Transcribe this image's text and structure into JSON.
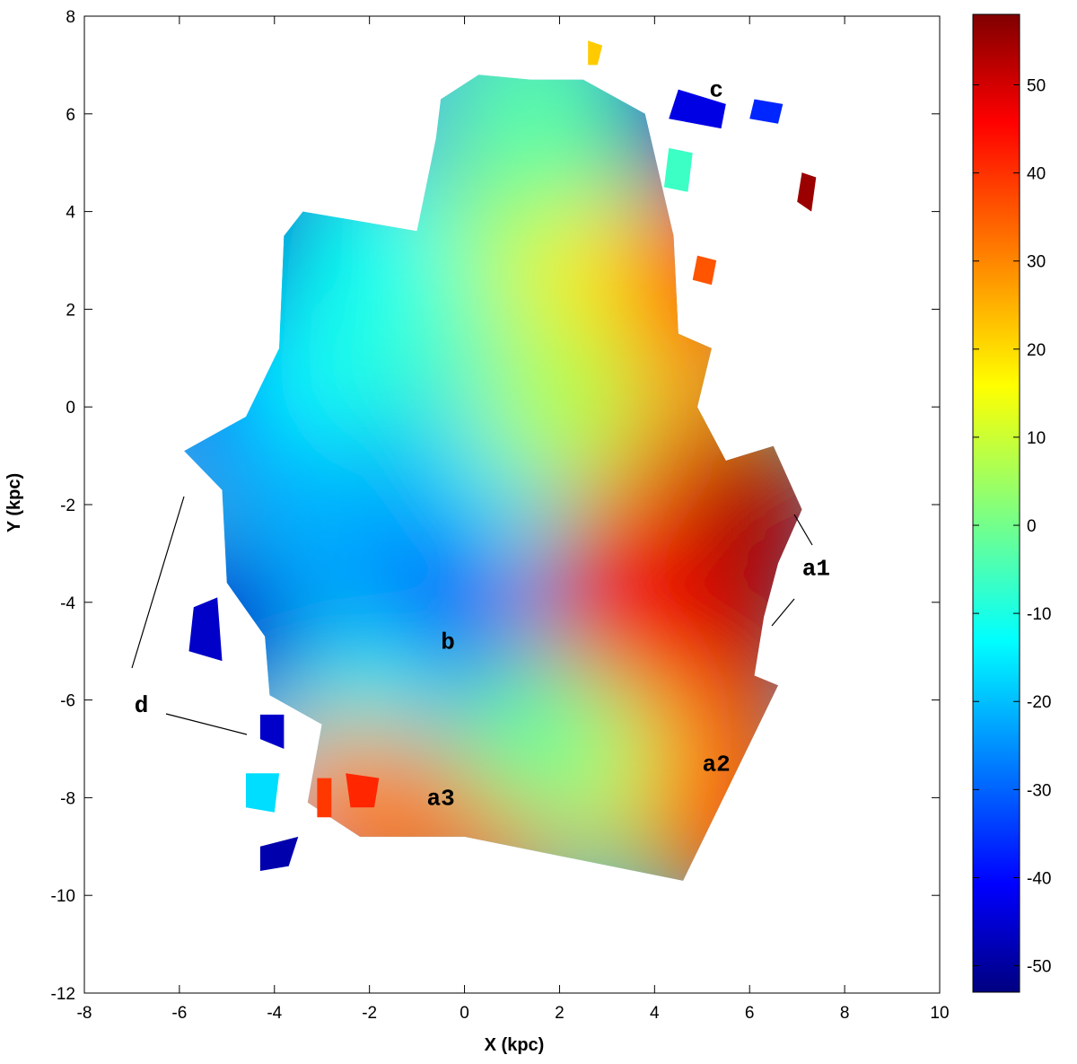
{
  "chart_data": {
    "type": "heatmap",
    "title": "",
    "xlabel": "X (kpc)",
    "ylabel": "Y (kpc)",
    "xlim": [
      -8,
      10
    ],
    "ylim": [
      -12,
      8
    ],
    "xticks": [
      -8,
      -6,
      -4,
      -2,
      0,
      2,
      4,
      6,
      8,
      10
    ],
    "yticks": [
      -12,
      -10,
      -8,
      -6,
      -4,
      -2,
      0,
      2,
      4,
      6,
      8
    ],
    "grid": false,
    "colorbar": {
      "colormap": "jet",
      "range": [
        -53,
        58
      ],
      "ticks": [
        -50,
        -40,
        -30,
        -20,
        -10,
        0,
        10,
        20,
        30,
        40,
        50
      ]
    },
    "annotations": [
      {
        "text": "a1",
        "x": 7.4,
        "y": -3.3
      },
      {
        "text": "a2",
        "x": 5.3,
        "y": -7.3
      },
      {
        "text": "a3",
        "x": -0.5,
        "y": -8.0
      },
      {
        "text": "b",
        "x": -0.35,
        "y": -4.8
      },
      {
        "text": "c",
        "x": 5.3,
        "y": 6.5
      },
      {
        "text": "d",
        "x": -6.8,
        "y": -6.1
      }
    ],
    "field": [
      {
        "x": -4.0,
        "y": 3.5,
        "v": -45
      },
      {
        "x": -4.6,
        "y": 0.2,
        "v": -30
      },
      {
        "x": -1.9,
        "y": -1.7,
        "v": -45
      },
      {
        "x": -1.5,
        "y": -3.5,
        "v": -35
      },
      {
        "x": 0.3,
        "y": -5.5,
        "v": -30
      },
      {
        "x": -3.0,
        "y": 0.5,
        "v": -12
      },
      {
        "x": -1.0,
        "y": 1.5,
        "v": -5
      },
      {
        "x": 1.0,
        "y": 3.5,
        "v": 8
      },
      {
        "x": 2.0,
        "y": 5.0,
        "v": 2
      },
      {
        "x": 1.5,
        "y": 6.2,
        "v": -2
      },
      {
        "x": 3.0,
        "y": 2.5,
        "v": 18
      },
      {
        "x": 4.5,
        "y": 0.5,
        "v": 25
      },
      {
        "x": 4.0,
        "y": -1.5,
        "v": 32
      },
      {
        "x": 6.0,
        "y": -2.0,
        "v": 52
      },
      {
        "x": 5.5,
        "y": -4.0,
        "v": 55
      },
      {
        "x": 3.5,
        "y": -4.0,
        "v": 45
      },
      {
        "x": 5.0,
        "y": -6.5,
        "v": 40
      },
      {
        "x": 3.0,
        "y": -7.5,
        "v": 12
      },
      {
        "x": 5.5,
        "y": -8.5,
        "v": 35
      },
      {
        "x": 0.5,
        "y": -8.5,
        "v": 32
      },
      {
        "x": -1.5,
        "y": -8.3,
        "v": 38
      },
      {
        "x": 1.5,
        "y": -6.8,
        "v": 0
      },
      {
        "x": -2.5,
        "y": -6.0,
        "v": -8
      },
      {
        "x": -4.0,
        "y": -4.0,
        "v": -25
      },
      {
        "x": -5.2,
        "y": -4.5,
        "v": -45
      },
      {
        "x": -3.0,
        "y": -2.5,
        "v": -20
      },
      {
        "x": 0.5,
        "y": -1.0,
        "v": -15
      },
      {
        "x": 2.0,
        "y": 0.0,
        "v": 8
      },
      {
        "x": -2.0,
        "y": 3.0,
        "v": -10
      },
      {
        "x": 5.0,
        "y": 6.0,
        "v": -45
      },
      {
        "x": 7.2,
        "y": 4.5,
        "v": 55
      },
      {
        "x": 5.2,
        "y": 2.8,
        "v": 35
      },
      {
        "x": -4.0,
        "y": -9.2,
        "v": -45
      },
      {
        "x": -4.2,
        "y": -8.0,
        "v": -15
      },
      {
        "x": -2.5,
        "y": -8.2,
        "v": 30
      }
    ],
    "outline": [
      [
        2.5,
        6.7
      ],
      [
        3.8,
        6.0
      ],
      [
        4.4,
        3.5
      ],
      [
        4.5,
        1.5
      ],
      [
        5.2,
        1.2
      ],
      [
        4.9,
        0.0
      ],
      [
        5.5,
        -1.1
      ],
      [
        6.5,
        -0.8
      ],
      [
        7.1,
        -2.1
      ],
      [
        6.6,
        -3.2
      ],
      [
        6.3,
        -4.3
      ],
      [
        6.1,
        -5.5
      ],
      [
        6.6,
        -5.7
      ],
      [
        4.6,
        -9.7
      ],
      [
        0.0,
        -8.8
      ],
      [
        -2.2,
        -8.8
      ],
      [
        -3.3,
        -8.1
      ],
      [
        -3.0,
        -6.5
      ],
      [
        -4.1,
        -5.9
      ],
      [
        -4.2,
        -4.7
      ],
      [
        -5.0,
        -3.6
      ],
      [
        -5.1,
        -1.7
      ],
      [
        -5.9,
        -0.9
      ],
      [
        -4.6,
        -0.2
      ],
      [
        -3.9,
        1.2
      ],
      [
        -3.8,
        3.5
      ],
      [
        -3.4,
        4.0
      ],
      [
        -1.0,
        3.6
      ],
      [
        -0.6,
        5.5
      ],
      [
        -0.5,
        6.3
      ],
      [
        0.3,
        6.8
      ],
      [
        1.4,
        6.7
      ]
    ],
    "blobs": [
      {
        "points": [
          [
            4.5,
            6.5
          ],
          [
            5.5,
            6.2
          ],
          [
            5.4,
            5.7
          ],
          [
            4.3,
            5.9
          ]
        ],
        "v": -42
      },
      {
        "points": [
          [
            6.1,
            6.3
          ],
          [
            6.7,
            6.2
          ],
          [
            6.6,
            5.8
          ],
          [
            6.0,
            5.9
          ]
        ],
        "v": -35
      },
      {
        "points": [
          [
            7.1,
            4.8
          ],
          [
            7.4,
            4.7
          ],
          [
            7.3,
            4.0
          ],
          [
            7.0,
            4.2
          ]
        ],
        "v": 55
      },
      {
        "points": [
          [
            4.9,
            3.1
          ],
          [
            5.3,
            3.0
          ],
          [
            5.2,
            2.5
          ],
          [
            4.8,
            2.6
          ]
        ],
        "v": 35
      },
      {
        "points": [
          [
            4.3,
            5.3
          ],
          [
            4.8,
            5.2
          ],
          [
            4.7,
            4.4
          ],
          [
            4.2,
            4.5
          ]
        ],
        "v": -5
      },
      {
        "points": [
          [
            2.6,
            7.5
          ],
          [
            2.9,
            7.4
          ],
          [
            2.8,
            7.0
          ],
          [
            2.6,
            7.0
          ]
        ],
        "v": 22
      },
      {
        "points": [
          [
            -5.7,
            -4.1
          ],
          [
            -5.2,
            -3.9
          ],
          [
            -5.1,
            -5.2
          ],
          [
            -5.8,
            -5.0
          ]
        ],
        "v": -45
      },
      {
        "points": [
          [
            -4.3,
            -6.3
          ],
          [
            -3.8,
            -6.3
          ],
          [
            -3.8,
            -7.0
          ],
          [
            -4.3,
            -6.8
          ]
        ],
        "v": -45
      },
      {
        "points": [
          [
            -4.3,
            -9.0
          ],
          [
            -3.5,
            -8.8
          ],
          [
            -3.7,
            -9.4
          ],
          [
            -4.3,
            -9.5
          ]
        ],
        "v": -48
      },
      {
        "points": [
          [
            -4.6,
            -7.5
          ],
          [
            -3.9,
            -7.5
          ],
          [
            -4.0,
            -8.3
          ],
          [
            -4.6,
            -8.2
          ]
        ],
        "v": -15
      },
      {
        "points": [
          [
            -3.1,
            -7.6
          ],
          [
            -2.8,
            -7.6
          ],
          [
            -2.8,
            -8.4
          ],
          [
            -3.1,
            -8.4
          ]
        ],
        "v": 38
      },
      {
        "points": [
          [
            -2.5,
            -7.5
          ],
          [
            -1.8,
            -7.6
          ],
          [
            -1.9,
            -8.2
          ],
          [
            -2.4,
            -8.2
          ]
        ],
        "v": 40
      }
    ]
  }
}
